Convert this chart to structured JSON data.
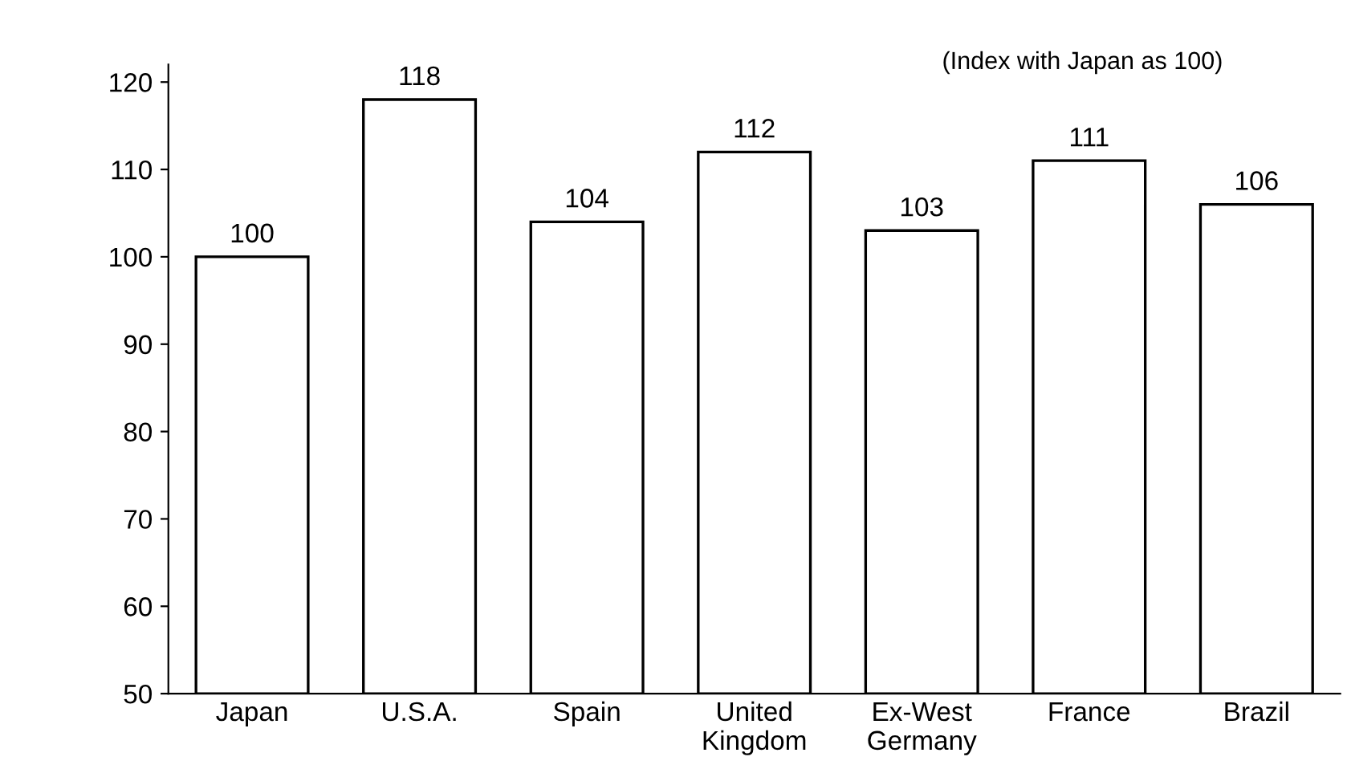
{
  "chart_data": {
    "type": "bar",
    "categories": [
      "Japan",
      "U.S.A.",
      "Spain",
      "United\nKingdom",
      "Ex-West\nGermany",
      "France",
      "Brazil"
    ],
    "values": [
      100,
      118,
      104,
      112,
      103,
      111,
      106
    ],
    "color": "#ffffff",
    "ylim": [
      50,
      122
    ],
    "yticks": [
      50,
      60,
      70,
      80,
      90,
      100,
      110,
      120
    ],
    "data_labels": true,
    "grid": false,
    "legend": false,
    "annotations": [
      "(Index with Japan as 100)"
    ]
  }
}
